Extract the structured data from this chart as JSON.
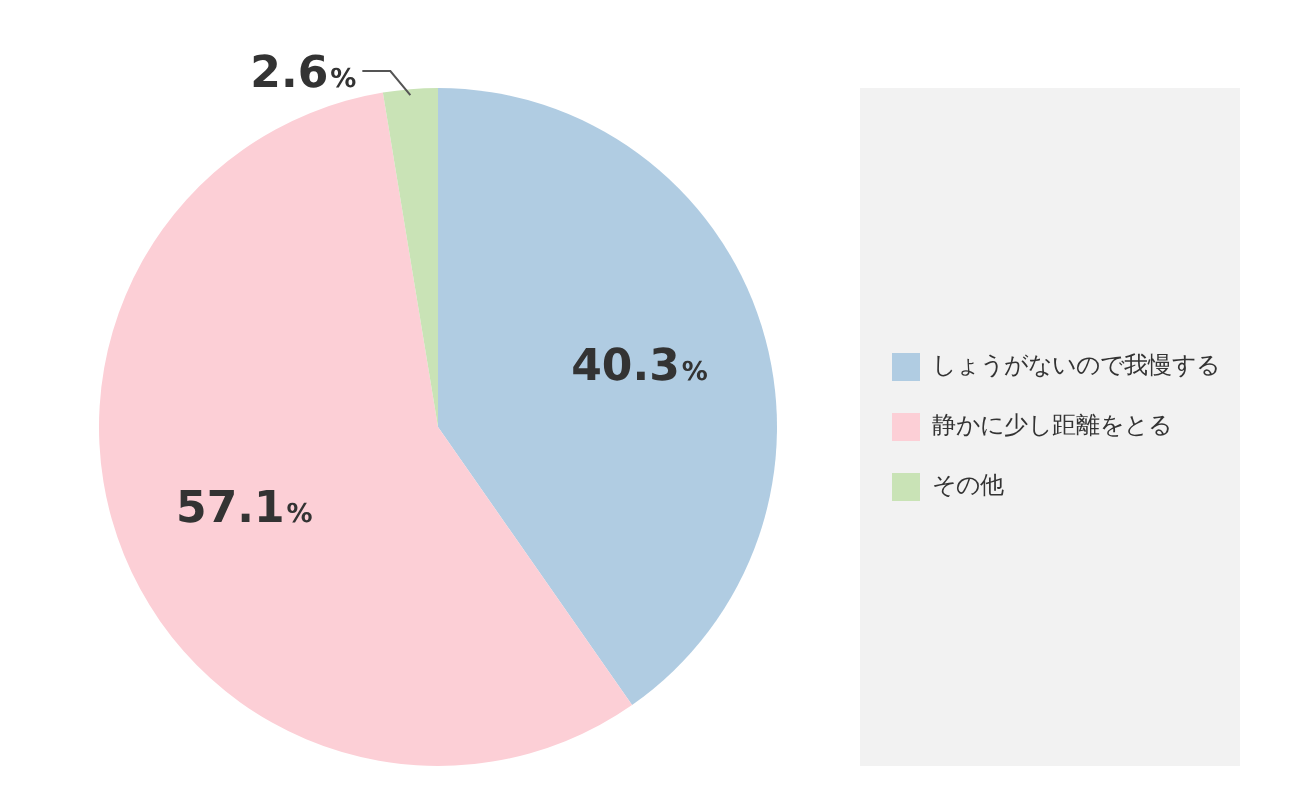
{
  "chart_data": {
    "type": "pie",
    "categories": [
      "しょうがないので我慢する",
      "静かに少し距離をとる",
      "その他"
    ],
    "values": [
      40.3,
      57.1,
      2.6
    ],
    "colors": [
      "#b0cce2",
      "#fccfd6",
      "#c9e3b6"
    ],
    "value_labels": [
      "40.3%",
      "57.1%",
      "2.6%"
    ],
    "legend": "right"
  }
}
